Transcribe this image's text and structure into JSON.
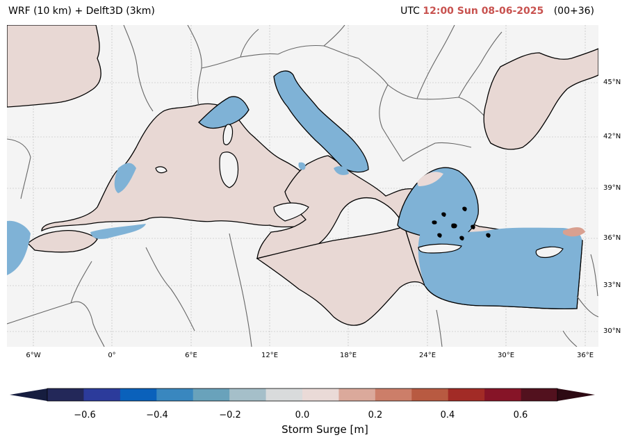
{
  "header": {
    "model": "WRF (10 km) + Delft3D (3km)",
    "utc_prefix": "UTC",
    "valid_time": "12:00 Sun 08-06-2025",
    "lead": "(00+36)"
  },
  "map": {
    "region": "Mediterranean Sea",
    "variable": "Storm Surge",
    "lat_labels": [
      "45°N",
      "42°N",
      "39°N",
      "36°N",
      "33°N",
      "30°N"
    ],
    "lon_labels": [
      "6°W",
      "0°",
      "6°E",
      "12°E",
      "18°E",
      "24°E",
      "30°E",
      "36°E"
    ],
    "colors": {
      "ocean_background": "#f4f4f4",
      "sea_near_zero": "#e8d8d4",
      "sea_negative": "#7fb2d6",
      "sea_positive": "#d9a090",
      "coastline": "#000000",
      "borders": "#666666"
    }
  },
  "colorbar": {
    "ticks": [
      "−0.6",
      "−0.4",
      "−0.2",
      "0.0",
      "0.2",
      "0.4",
      "0.6"
    ],
    "label": "Storm Surge [m]",
    "colors": [
      "#161d3f",
      "#232859",
      "#2c3b9b",
      "#0a61bb",
      "#3987bf",
      "#69a2bb",
      "#a5bfc9",
      "#d9dbdc",
      "#eadad7",
      "#dba99b",
      "#cc7e69",
      "#b85a41",
      "#a22b26",
      "#861427",
      "#52111e",
      "#2d0a13"
    ]
  }
}
